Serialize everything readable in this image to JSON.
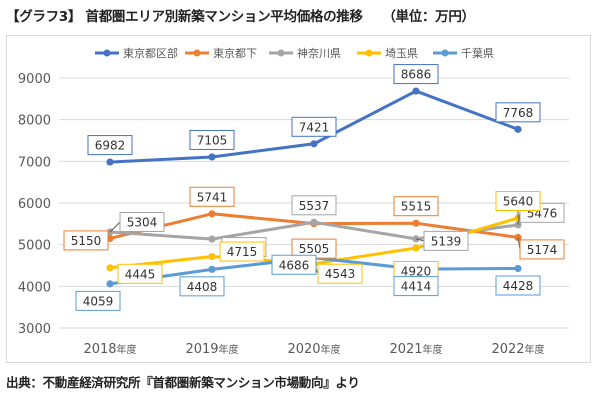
{
  "title": "【グラフ3】 首都圏エリア別新築マンション平均価格の推移　　（単位：万円）",
  "source": "出典：不動産経済研究所『首都圏新築マンション市場動向』より",
  "chart_data": {
    "type": "line",
    "title": "首都圏エリア別新築マンション平均価格の推移",
    "unit": "単位：万円",
    "categories": [
      "2018年度",
      "2019年度",
      "2020年度",
      "2021年度",
      "2022年度"
    ],
    "ylim": [
      3000,
      9000
    ],
    "yticks": [
      3000,
      4000,
      5000,
      6000,
      7000,
      8000,
      9000
    ],
    "grid": true,
    "legend_position": "top",
    "series": [
      {
        "name": "東京都区部",
        "color": "#4472c4",
        "values": [
          6982,
          7105,
          7421,
          8686,
          7768
        ]
      },
      {
        "name": "東京都下",
        "color": "#ed7d31",
        "values": [
          5150,
          5741,
          5505,
          5515,
          5174
        ]
      },
      {
        "name": "神奈川県",
        "color": "#a5a5a5",
        "values": [
          5304,
          5134,
          5537,
          5139,
          5476
        ]
      },
      {
        "name": "埼玉県",
        "color": "#ffc000",
        "values": [
          4445,
          4715,
          4543,
          4920,
          5640
        ]
      },
      {
        "name": "千葉県",
        "color": "#5b9bd5",
        "values": [
          4059,
          4408,
          4686,
          4414,
          4428
        ]
      }
    ]
  }
}
